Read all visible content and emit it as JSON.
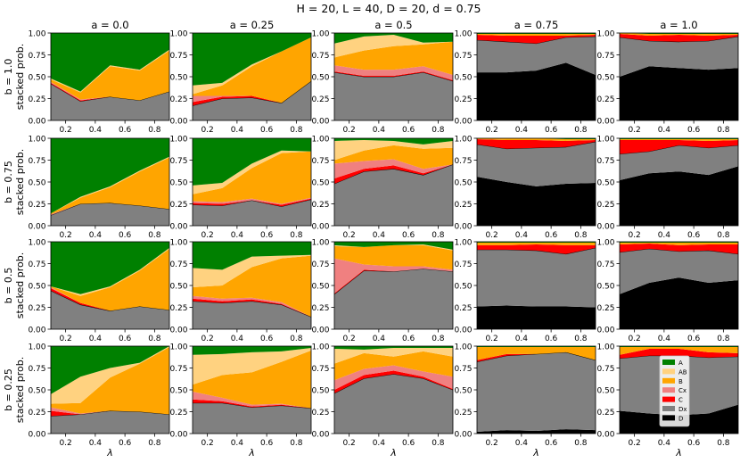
{
  "suptitle": "H = 20, L = 40,     D = 20, d = 0.75",
  "col_titles": [
    "a = 0.0",
    "a = 0.25",
    "a = 0.5",
    "a = 0.75",
    "a = 1.0"
  ],
  "row_labels": [
    "b = 1.0",
    "b = 0.75",
    "b = 0.5",
    "b = 0.25"
  ],
  "ylabel": "stacked prob.",
  "xlabel": "λ",
  "xticks": [
    "0.2",
    "0.4",
    "0.6",
    "0.8"
  ],
  "yticks": [
    "0.00",
    "0.25",
    "0.50",
    "0.75",
    "1.00"
  ],
  "legend": [
    {
      "label": "A",
      "color": "#008000"
    },
    {
      "label": "AB",
      "color": "#ffd280"
    },
    {
      "label": "B",
      "color": "#ffa500"
    },
    {
      "label": "Cx",
      "color": "#f08080"
    },
    {
      "label": "C",
      "color": "#ff0000"
    },
    {
      "label": "Dx",
      "color": "#808080"
    },
    {
      "label": "D",
      "color": "#000000"
    }
  ],
  "chart_data": {
    "type": "area",
    "x": [
      0.1,
      0.3,
      0.5,
      0.7,
      0.9
    ],
    "xlim": [
      0.1,
      0.9
    ],
    "ylim": [
      0,
      1
    ],
    "series_order": [
      "D",
      "Dx",
      "C",
      "Cx",
      "B",
      "AB",
      "A"
    ],
    "panels": [
      [
        {
          "D": [
            0,
            0,
            0,
            0,
            0
          ],
          "Dx": [
            0.42,
            0.22,
            0.27,
            0.23,
            0.33
          ],
          "C": [
            0.01,
            0.01,
            0,
            0,
            0
          ],
          "Cx": [
            0.01,
            0.01,
            0,
            0,
            0
          ],
          "B": [
            0.03,
            0.08,
            0.35,
            0.34,
            0.47
          ],
          "AB": [
            0.01,
            0.01,
            0.01,
            0.01,
            0.01
          ],
          "A": [
            0.52,
            0.67,
            0.37,
            0.42,
            0.19
          ]
        },
        {
          "D": [
            0,
            0,
            0,
            0,
            0
          ],
          "Dx": [
            0.17,
            0.25,
            0.26,
            0.2,
            0.45
          ],
          "C": [
            0.04,
            0.02,
            0.02,
            0,
            0
          ],
          "Cx": [
            0.07,
            0.01,
            0,
            0,
            0
          ],
          "B": [
            0.02,
            0.12,
            0.34,
            0.59,
            0.5
          ],
          "AB": [
            0.1,
            0.03,
            0.02,
            0,
            0
          ],
          "A": [
            0.6,
            0.57,
            0.36,
            0.21,
            0.05
          ]
        },
        {
          "D": [
            0,
            0,
            0,
            0,
            0
          ],
          "Dx": [
            0.55,
            0.5,
            0.5,
            0.55,
            0.45
          ],
          "C": [
            0.01,
            0.01,
            0.01,
            0.01,
            0.01
          ],
          "Cx": [
            0.07,
            0.07,
            0.07,
            0.06,
            0.06
          ],
          "B": [
            0.09,
            0.22,
            0.27,
            0.25,
            0.38
          ],
          "AB": [
            0.16,
            0.16,
            0.13,
            0.02,
            0
          ],
          "A": [
            0.12,
            0.04,
            0.02,
            0.11,
            0.1
          ]
        },
        {
          "D": [
            0.55,
            0.55,
            0.57,
            0.66,
            0.52
          ],
          "Dx": [
            0.37,
            0.35,
            0.31,
            0.29,
            0.44
          ],
          "C": [
            0.06,
            0.07,
            0.09,
            0.02,
            0.02
          ],
          "Cx": [
            0,
            0,
            0,
            0,
            0
          ],
          "B": [
            0.01,
            0.02,
            0.02,
            0.02,
            0.01
          ],
          "AB": [
            0,
            0,
            0,
            0,
            0
          ],
          "A": [
            0.01,
            0.01,
            0.01,
            0.01,
            0.01
          ]
        },
        {
          "D": [
            0.5,
            0.62,
            0.6,
            0.58,
            0.6
          ],
          "Dx": [
            0.45,
            0.29,
            0.3,
            0.33,
            0.36
          ],
          "C": [
            0.04,
            0.06,
            0.08,
            0.06,
            0.02
          ],
          "Cx": [
            0,
            0,
            0,
            0,
            0
          ],
          "B": [
            0.01,
            0.02,
            0.01,
            0.02,
            0.01
          ],
          "AB": [
            0,
            0,
            0,
            0,
            0
          ],
          "A": [
            0,
            0.01,
            0.01,
            0.01,
            0.01
          ]
        }
      ],
      [
        {
          "D": [
            0,
            0,
            0,
            0,
            0
          ],
          "Dx": [
            0.12,
            0.25,
            0.26,
            0.23,
            0.19
          ],
          "C": [
            0,
            0,
            0,
            0,
            0
          ],
          "Cx": [
            0.01,
            0,
            0,
            0,
            0
          ],
          "B": [
            0.01,
            0.07,
            0.18,
            0.39,
            0.59
          ],
          "AB": [
            0,
            0.01,
            0.01,
            0.01,
            0.01
          ],
          "A": [
            0.86,
            0.67,
            0.55,
            0.37,
            0.21
          ]
        },
        {
          "D": [
            0,
            0,
            0,
            0,
            0
          ],
          "Dx": [
            0.24,
            0.23,
            0.29,
            0.22,
            0.3
          ],
          "C": [
            0.02,
            0.02,
            0,
            0.02,
            0.01
          ],
          "Cx": [
            0.02,
            0.02,
            0.02,
            0.01,
            0.01
          ],
          "B": [
            0.08,
            0.16,
            0.35,
            0.58,
            0.53
          ],
          "AB": [
            0.1,
            0.06,
            0.05,
            0.03,
            0
          ],
          "A": [
            0.54,
            0.51,
            0.29,
            0.14,
            0.15
          ]
        },
        {
          "D": [
            0,
            0,
            0,
            0,
            0
          ],
          "Dx": [
            0.48,
            0.62,
            0.65,
            0.58,
            0.7
          ],
          "C": [
            0.06,
            0.03,
            0.04,
            0.02,
            0
          ],
          "Cx": [
            0.17,
            0.09,
            0.07,
            0.05,
            0
          ],
          "B": [
            0.04,
            0.12,
            0.16,
            0.23,
            0.19
          ],
          "AB": [
            0.22,
            0.12,
            0.05,
            0.05,
            0.08
          ],
          "A": [
            0.03,
            0.02,
            0.03,
            0.07,
            0.03
          ]
        },
        {
          "D": [
            0.56,
            0.5,
            0.45,
            0.48,
            0.49
          ],
          "Dx": [
            0.37,
            0.38,
            0.44,
            0.42,
            0.47
          ],
          "C": [
            0.06,
            0.1,
            0.09,
            0.07,
            0.02
          ],
          "Cx": [
            0,
            0,
            0,
            0,
            0
          ],
          "B": [
            0.01,
            0.02,
            0.02,
            0.02,
            0.01
          ],
          "AB": [
            0,
            0,
            0,
            0,
            0
          ],
          "A": [
            0,
            0,
            0,
            0.01,
            0.01
          ]
        },
        {
          "D": [
            0.52,
            0.6,
            0.62,
            0.58,
            0.68
          ],
          "Dx": [
            0.3,
            0.25,
            0.3,
            0.31,
            0.24
          ],
          "C": [
            0.16,
            0.13,
            0.06,
            0.08,
            0.06
          ],
          "Cx": [
            0,
            0,
            0,
            0,
            0
          ],
          "B": [
            0.01,
            0.01,
            0.01,
            0.02,
            0.01
          ],
          "AB": [
            0,
            0,
            0,
            0,
            0
          ],
          "A": [
            0.01,
            0.01,
            0.01,
            0.01,
            0.01
          ]
        }
      ],
      [
        {
          "D": [
            0,
            0,
            0,
            0,
            0
          ],
          "Dx": [
            0.44,
            0.28,
            0.21,
            0.26,
            0.22
          ],
          "C": [
            0.03,
            0.02,
            0,
            0,
            0
          ],
          "Cx": [
            0.01,
            0,
            0,
            0,
            0
          ],
          "B": [
            0.01,
            0.08,
            0.27,
            0.41,
            0.7
          ],
          "AB": [
            0,
            0.02,
            0.01,
            0.01,
            0.01
          ],
          "A": [
            0.51,
            0.6,
            0.51,
            0.32,
            0.07
          ]
        },
        {
          "D": [
            0,
            0,
            0,
            0,
            0
          ],
          "Dx": [
            0.32,
            0.3,
            0.32,
            0.28,
            0.14
          ],
          "C": [
            0.03,
            0.02,
            0.02,
            0.01,
            0
          ],
          "Cx": [
            0.03,
            0.03,
            0.02,
            0.02,
            0
          ],
          "B": [
            0.1,
            0.15,
            0.35,
            0.5,
            0.7
          ],
          "AB": [
            0.22,
            0.18,
            0.12,
            0.03,
            0.01
          ],
          "A": [
            0.3,
            0.32,
            0.17,
            0.16,
            0.15
          ]
        },
        {
          "D": [
            0,
            0,
            0,
            0,
            0
          ],
          "Dx": [
            0.4,
            0.67,
            0.66,
            0.69,
            0.66
          ],
          "C": [
            0.01,
            0.01,
            0,
            0,
            0
          ],
          "Cx": [
            0.4,
            0.06,
            0.06,
            0.03,
            0.02
          ],
          "B": [
            0.14,
            0.2,
            0.24,
            0.24,
            0.22
          ],
          "AB": [
            0.01,
            0,
            0,
            0.01,
            0.01
          ],
          "A": [
            0.04,
            0.06,
            0.04,
            0.03,
            0.09
          ]
        },
        {
          "D": [
            0.26,
            0.27,
            0.26,
            0.26,
            0.25
          ],
          "Dx": [
            0.65,
            0.64,
            0.64,
            0.6,
            0.68
          ],
          "C": [
            0.05,
            0.05,
            0.07,
            0.1,
            0.03
          ],
          "Cx": [
            0,
            0,
            0,
            0,
            0
          ],
          "B": [
            0.03,
            0.03,
            0.02,
            0.03,
            0.03
          ],
          "AB": [
            0,
            0,
            0,
            0,
            0
          ],
          "A": [
            0.01,
            0.01,
            0.01,
            0.01,
            0.01
          ]
        },
        {
          "D": [
            0.4,
            0.53,
            0.59,
            0.53,
            0.56
          ],
          "Dx": [
            0.48,
            0.39,
            0.3,
            0.37,
            0.3
          ],
          "C": [
            0.09,
            0.06,
            0.07,
            0.07,
            0.11
          ],
          "Cx": [
            0,
            0,
            0,
            0,
            0
          ],
          "B": [
            0.02,
            0.01,
            0.03,
            0.02,
            0.02
          ],
          "AB": [
            0,
            0,
            0,
            0,
            0
          ],
          "A": [
            0.01,
            0.01,
            0.01,
            0.01,
            0.01
          ]
        }
      ],
      [
        {
          "D": [
            0,
            0,
            0,
            0,
            0
          ],
          "Dx": [
            0.2,
            0.22,
            0.26,
            0.25,
            0.22
          ],
          "C": [
            0.06,
            0,
            0,
            0,
            0
          ],
          "Cx": [
            0.04,
            0.01,
            0,
            0,
            0
          ],
          "B": [
            0.04,
            0.12,
            0.38,
            0.55,
            0.77
          ],
          "AB": [
            0.11,
            0.3,
            0.11,
            0.01,
            0.01
          ],
          "A": [
            0.55,
            0.35,
            0.25,
            0.19,
            0
          ]
        },
        {
          "D": [
            0,
            0,
            0,
            0,
            0
          ],
          "Dx": [
            0.35,
            0.35,
            0.3,
            0.32,
            0.29
          ],
          "C": [
            0.04,
            0.02,
            0.01,
            0.01,
            0
          ],
          "Cx": [
            0.09,
            0.04,
            0.02,
            0.01,
            0
          ],
          "B": [
            0.08,
            0.26,
            0.37,
            0.48,
            0.66
          ],
          "AB": [
            0.34,
            0.24,
            0.23,
            0.12,
            0.03
          ],
          "A": [
            0.1,
            0.09,
            0.07,
            0.06,
            0.02
          ]
        },
        {
          "D": [
            0,
            0,
            0,
            0,
            0
          ],
          "Dx": [
            0.46,
            0.63,
            0.68,
            0.63,
            0.5
          ],
          "C": [
            0.04,
            0.04,
            0.04,
            0.02,
            0.01
          ],
          "Cx": [
            0.11,
            0.07,
            0.06,
            0.06,
            0.14
          ],
          "B": [
            0.19,
            0.18,
            0.1,
            0.23,
            0.23
          ],
          "AB": [
            0.17,
            0.04,
            0.1,
            0.04,
            0.1
          ],
          "A": [
            0.03,
            0.04,
            0.02,
            0.02,
            0.02
          ]
        },
        {
          "D": [
            0.02,
            0.04,
            0.03,
            0.05,
            0.04
          ],
          "Dx": [
            0.8,
            0.85,
            0.88,
            0.88,
            0.8
          ],
          "C": [
            0.02,
            0.02,
            0,
            0,
            0
          ],
          "Cx": [
            0,
            0,
            0,
            0,
            0
          ],
          "B": [
            0.15,
            0.08,
            0.08,
            0.06,
            0.15
          ],
          "AB": [
            0,
            0,
            0,
            0,
            0
          ],
          "A": [
            0.01,
            0.01,
            0.01,
            0.01,
            0.01
          ]
        },
        {
          "D": [
            0.26,
            0.23,
            0.21,
            0.23,
            0.33
          ],
          "Dx": [
            0.6,
            0.66,
            0.68,
            0.64,
            0.55
          ],
          "C": [
            0.04,
            0.08,
            0.08,
            0.06,
            0.04
          ],
          "Cx": [
            0,
            0,
            0,
            0,
            0
          ],
          "B": [
            0.09,
            0.02,
            0.02,
            0.06,
            0.07
          ],
          "AB": [
            0,
            0,
            0,
            0,
            0
          ],
          "A": [
            0.01,
            0.01,
            0.01,
            0.01,
            0.01
          ]
        }
      ]
    ]
  }
}
